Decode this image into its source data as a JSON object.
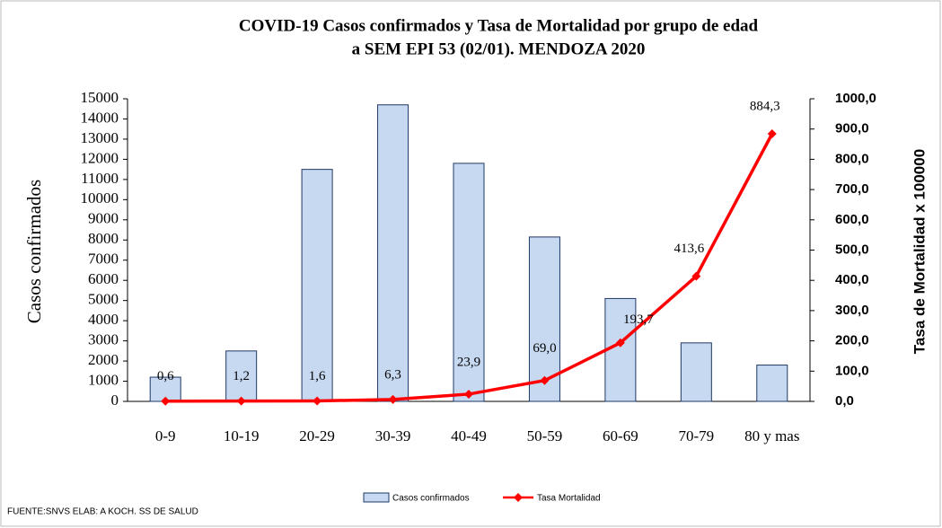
{
  "chart_data": {
    "type": "bar_line",
    "title": [
      "COVID-19 Casos confirmados y Tasa de Mortalidad por grupo de edad",
      "a SEM EPI 53 (02/01). MENDOZA 2020"
    ],
    "y_label": "Casos confirmados",
    "y2_label": "Tasa de Mortalidad x 100000",
    "source": "FUENTE:SNVS ELAB: A KOCH. SS DE SALUD",
    "categories": [
      "0-9",
      "10-19",
      "20-29",
      "30-39",
      "40-49",
      "50-59",
      "60-69",
      "70-79",
      "80 y mas"
    ],
    "series": [
      {
        "name": "Casos confirmados",
        "type": "bar",
        "color": "#c6d9f1",
        "values": [
          1200,
          2500,
          11500,
          14700,
          11800,
          8150,
          5100,
          2900,
          1800
        ]
      },
      {
        "name": "Tasa Mortalidad",
        "type": "line",
        "axis": "y2",
        "color": "#ff0000",
        "values": [
          0.6,
          1.2,
          1.6,
          6.3,
          23.9,
          69.0,
          193.7,
          413.6,
          884.3
        ],
        "value_labels": [
          "0,6",
          "1,2",
          "1,6",
          "6,3",
          "23,9",
          "69,0",
          "193,7",
          "413,6",
          "884,3"
        ]
      }
    ],
    "ylim": [
      0,
      15000
    ],
    "yticks": [
      0,
      1000,
      2000,
      3000,
      4000,
      5000,
      6000,
      7000,
      8000,
      9000,
      10000,
      11000,
      12000,
      13000,
      14000,
      15000
    ],
    "y2lim": [
      0,
      1000
    ],
    "y2ticks": [
      {
        "value": 0,
        "label": "0,0"
      },
      {
        "value": 100,
        "label": "100,0"
      },
      {
        "value": 200,
        "label": "200,0"
      },
      {
        "value": 300,
        "label": "300,0"
      },
      {
        "value": 400,
        "label": "400,0"
      },
      {
        "value": 500,
        "label": "500,0"
      },
      {
        "value": 600,
        "label": "600,0"
      },
      {
        "value": 700,
        "label": "700,0"
      },
      {
        "value": 800,
        "label": "800,0"
      },
      {
        "value": 900,
        "label": "900,0"
      },
      {
        "value": 1000,
        "label": "1000,0"
      }
    ]
  }
}
